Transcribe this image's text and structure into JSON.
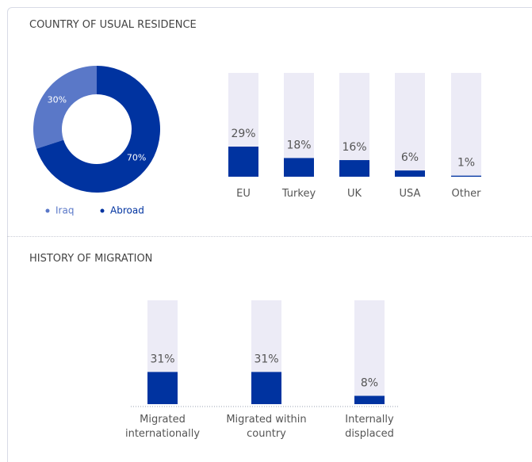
{
  "chart_data": [
    {
      "type": "pie",
      "title": "COUNTRY OF USUAL RESIDENCE",
      "donut": true,
      "categories": [
        "Iraq",
        "Abroad"
      ],
      "values": [
        30,
        70
      ],
      "value_labels": [
        "30%",
        "70%"
      ],
      "colors": [
        "#5a78c8",
        "#0033a0"
      ],
      "legend": "bottom"
    },
    {
      "type": "bar",
      "categories": [
        "EU",
        "Turkey",
        "UK",
        "USA",
        "Other"
      ],
      "values": [
        29,
        18,
        16,
        6,
        1
      ],
      "value_labels": [
        "29%",
        "18%",
        "16%",
        "6%",
        "1%"
      ],
      "color": "#0033a0",
      "track_color": "#ecebf6",
      "ylim": [
        0,
        100
      ]
    },
    {
      "type": "bar",
      "title": "HISTORY OF MIGRATION",
      "categories": [
        "Migrated internationally",
        "Migrated within country",
        "Internally displaced"
      ],
      "values": [
        31,
        31,
        8
      ],
      "value_labels": [
        "31%",
        "31%",
        "8%"
      ],
      "color": "#0033a0",
      "track_color": "#ecebf6",
      "ylim": [
        0,
        100
      ]
    }
  ]
}
